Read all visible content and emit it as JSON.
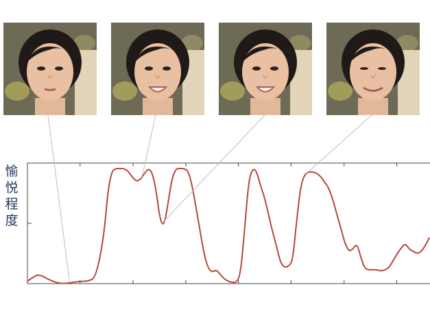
{
  "frames": [
    {
      "expression": "neutral"
    },
    {
      "expression": "smile"
    },
    {
      "expression": "smile"
    },
    {
      "expression": "grin"
    }
  ],
  "chart_data": {
    "type": "line",
    "title": "",
    "xlabel": "",
    "ylabel_chars": [
      "愉",
      "悦",
      "程",
      "度"
    ],
    "ylim": [
      0,
      1
    ],
    "xlim": [
      0,
      100
    ],
    "grid": false,
    "series": [
      {
        "color": "#b5473a",
        "x": [
          0,
          1.5,
          3,
          5,
          7,
          9,
          11,
          13,
          15,
          17,
          19,
          20,
          21,
          22,
          23,
          24,
          25,
          26,
          27,
          28,
          29,
          30,
          31,
          32,
          33,
          34,
          35,
          36,
          37,
          38,
          39,
          40,
          41,
          42,
          43,
          44,
          45,
          46,
          47,
          48,
          49,
          50,
          51,
          52,
          53,
          54,
          55,
          56,
          57,
          58,
          59,
          60,
          61,
          62,
          63,
          64,
          65,
          66,
          67,
          68,
          69,
          70,
          71,
          72,
          73,
          74,
          75,
          76,
          77,
          78,
          79,
          80,
          81,
          82,
          83,
          84,
          85,
          86,
          87,
          88,
          89,
          90,
          91,
          92,
          93,
          94,
          95,
          96,
          97,
          98,
          99,
          100
        ],
        "values": [
          0.02,
          0.06,
          0.08,
          0.04,
          0.01,
          0.0,
          0.01,
          0.02,
          0.02,
          0.05,
          0.4,
          0.8,
          0.98,
          1.0,
          1.0,
          1.0,
          0.98,
          0.93,
          0.89,
          0.9,
          0.95,
          1.0,
          0.97,
          0.82,
          0.55,
          0.5,
          0.7,
          0.92,
          1.0,
          1.0,
          1.0,
          0.98,
          0.85,
          0.65,
          0.45,
          0.25,
          0.13,
          0.1,
          0.12,
          0.08,
          0.04,
          0.02,
          0.01,
          0.01,
          0.08,
          0.45,
          0.88,
          1.0,
          0.98,
          0.85,
          0.75,
          0.6,
          0.45,
          0.32,
          0.18,
          0.14,
          0.15,
          0.2,
          0.55,
          0.85,
          0.95,
          0.97,
          0.97,
          0.96,
          0.93,
          0.88,
          0.83,
          0.73,
          0.6,
          0.48,
          0.35,
          0.28,
          0.3,
          0.35,
          0.22,
          0.13,
          0.12,
          0.12,
          0.12,
          0.11,
          0.12,
          0.14,
          0.2,
          0.26,
          0.31,
          0.35,
          0.3,
          0.28,
          0.26,
          0.28,
          0.33,
          0.4
        ]
      }
    ],
    "leader_lines": [
      {
        "frame": 0,
        "x": 10.5
      },
      {
        "frame": 1,
        "x": 28.5
      },
      {
        "frame": 2,
        "x": 33.5
      },
      {
        "frame": 3,
        "x": 69.5
      }
    ]
  }
}
